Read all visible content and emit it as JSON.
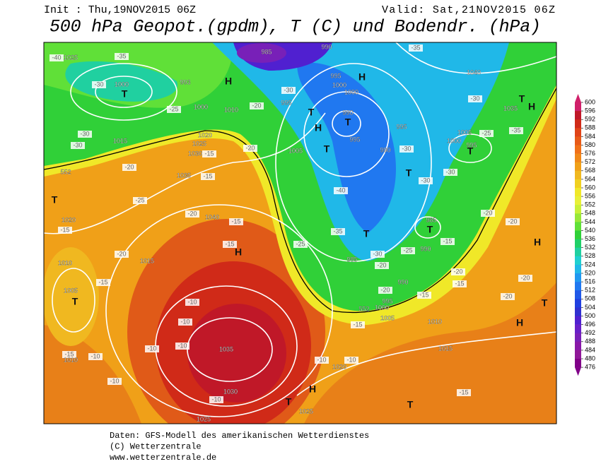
{
  "header": {
    "init": "Init : Thu,19NOV2015 06Z",
    "valid": "Valid: Sat,21NOV2015 06Z",
    "title": "500 hPa Geopot.(gpdm), T (C) und Bodendr. (hPa)"
  },
  "map": {
    "labels": [
      "1025",
      "-40",
      "-35",
      "985",
      "990",
      "-35",
      "-30",
      "1000",
      "T",
      "993",
      "H",
      "995",
      "H",
      "1000",
      "1000",
      "-30",
      "995",
      "1040",
      "-30",
      "T",
      "1035",
      "H",
      "1000",
      "1010",
      "-25",
      "-20",
      "990",
      "T",
      "H",
      "995",
      "1005",
      "-25",
      "-35",
      "1000",
      "995",
      "T",
      "-30",
      "-30",
      "1015",
      "1020",
      "1025",
      "1030",
      "-15",
      "-20",
      "1005",
      "T",
      "995",
      "990",
      "-30",
      "T",
      "552",
      "-20",
      "1035",
      "-15",
      "T",
      "-30",
      "-30",
      "T",
      "-25",
      "-40",
      "1020",
      "-15",
      "-20",
      "1040",
      "-15",
      "-15",
      "H",
      "-20",
      "1015",
      "985",
      "T",
      "T",
      "-35",
      "-25",
      "-25",
      "990",
      "-15",
      "-20",
      "-20",
      "H",
      "1010",
      "-15",
      "985",
      "-30",
      "-20",
      "-20",
      "-15",
      "990",
      "-15",
      "-20",
      "-20",
      "1005",
      "T",
      "-20",
      "1000",
      "995",
      "552",
      "1005",
      "1010",
      "H",
      "T",
      "-15",
      "-10",
      "-10",
      "-10",
      "-10",
      "1035",
      "-15",
      "1010",
      "-10",
      "-10",
      "-10",
      "-10",
      "1020",
      "1015",
      "H",
      "1030",
      "-10",
      "-15",
      "1025",
      "1025",
      "T",
      "T"
    ]
  },
  "colorbar": {
    "ticks": [
      600,
      596,
      592,
      588,
      584,
      580,
      576,
      572,
      568,
      564,
      560,
      556,
      552,
      548,
      544,
      540,
      536,
      532,
      528,
      524,
      520,
      516,
      512,
      508,
      504,
      500,
      496,
      492,
      488,
      484,
      480,
      476
    ],
    "colors": [
      "#d0206a",
      "#c01828",
      "#d02a18",
      "#e04418",
      "#e85a18",
      "#f07018",
      "#f08818",
      "#f0a018",
      "#f0b820",
      "#f0d020",
      "#f0e828",
      "#e8f038",
      "#c8f038",
      "#98e838",
      "#60e038",
      "#30d038",
      "#20d068",
      "#20d0a0",
      "#20d0d0",
      "#20b8e8",
      "#2098f0",
      "#2078f0",
      "#2058e8",
      "#2040e0",
      "#3030d0",
      "#5020d0",
      "#6820c8",
      "#7820b8",
      "#8818a8",
      "#901898",
      "#800088"
    ]
  },
  "footer": {
    "lines": [
      "Daten: GFS-Modell des amerikanischen Wetterdienstes",
      "(C) Wetterzentrale",
      "www.wetterzentrale.de"
    ]
  }
}
